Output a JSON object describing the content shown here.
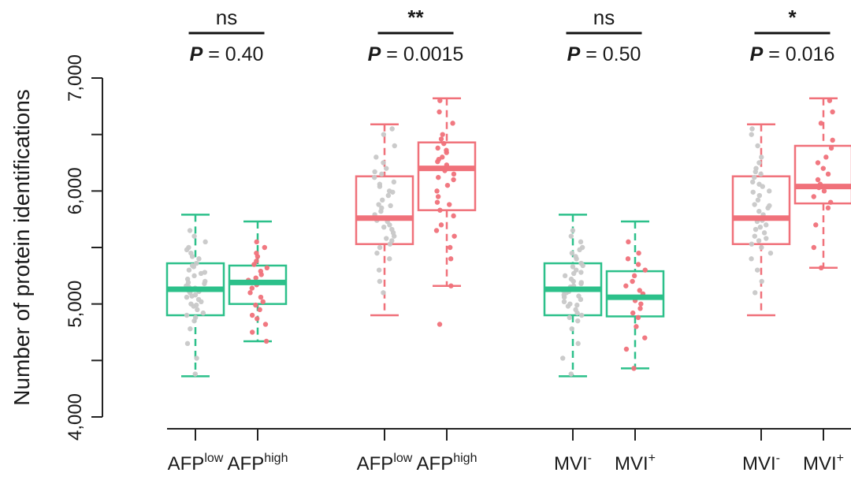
{
  "chart_data": {
    "type": "box",
    "ylabel": "Number of protein identifications",
    "ylim": [
      4000,
      7000
    ],
    "yticks": [
      {
        "value": 4000,
        "label": "4,000"
      },
      {
        "value": 4500,
        "label": ""
      },
      {
        "value": 5000,
        "label": "5,000"
      },
      {
        "value": 5500,
        "label": ""
      },
      {
        "value": 6000,
        "label": "6,000"
      },
      {
        "value": 6500,
        "label": ""
      },
      {
        "value": 7000,
        "label": "7,000"
      }
    ],
    "colors": {
      "green": "#2cc08a",
      "red": "#f0717a",
      "point_gray": "#c8c8c8"
    },
    "groups": [
      {
        "label_base": "AFP",
        "label_sup": "low",
        "color": "#2cc08a",
        "point_color": "#c8c8c8",
        "whisker_low": 4360,
        "q1": 4900,
        "median": 5130,
        "q3": 5360,
        "whisker_high": 5790,
        "points": [
          4380,
          4520,
          4650,
          4780,
          4850,
          4880,
          4900,
          4920,
          4950,
          4980,
          5000,
          5020,
          5040,
          5060,
          5080,
          5100,
          5110,
          5120,
          5130,
          5140,
          5150,
          5160,
          5180,
          5200,
          5220,
          5250,
          5280,
          5300,
          5330,
          5360,
          5400,
          5450,
          5500,
          5550,
          5600,
          5650,
          4990,
          5070,
          5190,
          5270,
          5340,
          5420,
          5480
        ]
      },
      {
        "label_base": "AFP",
        "label_sup": "high",
        "color": "#2cc08a",
        "point_color": "#f0717a",
        "whisker_low": 4670,
        "q1": 5000,
        "median": 5190,
        "q3": 5340,
        "whisker_high": 5730,
        "points": [
          4670,
          4750,
          4820,
          4870,
          4900,
          4950,
          4990,
          5020,
          5060,
          5100,
          5140,
          5170,
          5190,
          5210,
          5230,
          5260,
          5290,
          5320,
          5350,
          5380,
          5420,
          5450,
          5500,
          5550
        ]
      },
      {
        "label_base": "AFP",
        "label_sup": "low",
        "color": "#f0717a",
        "point_color": "#c8c8c8",
        "whisker_low": 4900,
        "q1": 5530,
        "median": 5760,
        "q3": 6130,
        "whisker_high": 6590,
        "points": [
          5100,
          5200,
          5300,
          5400,
          5450,
          5500,
          5530,
          5560,
          5600,
          5630,
          5660,
          5700,
          5730,
          5760,
          5790,
          5820,
          5850,
          5880,
          5920,
          5960,
          6000,
          6040,
          6080,
          6120,
          6150,
          6200,
          6250,
          6300,
          6400,
          6500,
          6550,
          5580,
          5680,
          5740,
          5870,
          5990,
          6060,
          6170
        ]
      },
      {
        "label_base": "AFP",
        "label_sup": "high",
        "color": "#f0717a",
        "point_color": "#f0717a",
        "whisker_low": 5160,
        "q1": 5830,
        "median": 6200,
        "q3": 6430,
        "whisker_high": 6820,
        "points": [
          4820,
          5160,
          5400,
          5500,
          5600,
          5700,
          5780,
          5830,
          5900,
          5950,
          6000,
          6050,
          6100,
          6150,
          6200,
          6230,
          6260,
          6300,
          6340,
          6380,
          6420,
          6460,
          6500,
          6600,
          6700,
          6800,
          5650,
          5880,
          6120,
          6180,
          6280,
          6360
        ]
      },
      {
        "label_base": "MVI",
        "label_sup": "-",
        "color": "#2cc08a",
        "point_color": "#c8c8c8",
        "whisker_low": 4360,
        "q1": 4900,
        "median": 5130,
        "q3": 5360,
        "whisker_high": 5790,
        "points": [
          4380,
          4520,
          4650,
          4780,
          4850,
          4880,
          4900,
          4920,
          4950,
          4980,
          5000,
          5020,
          5040,
          5060,
          5080,
          5100,
          5110,
          5120,
          5130,
          5140,
          5150,
          5160,
          5180,
          5200,
          5220,
          5250,
          5280,
          5300,
          5330,
          5360,
          5400,
          5450,
          5500,
          5550,
          5600,
          5650,
          4990,
          5070,
          5190,
          5270,
          5340,
          5420,
          5480
        ]
      },
      {
        "label_base": "MVI",
        "label_sup": "+",
        "color": "#2cc08a",
        "point_color": "#f0717a",
        "whisker_low": 4430,
        "q1": 4890,
        "median": 5060,
        "q3": 5290,
        "whisker_high": 5730,
        "points": [
          4430,
          4600,
          4700,
          4800,
          4880,
          4920,
          4960,
          5000,
          5030,
          5060,
          5090,
          5120,
          5160,
          5200,
          5250,
          5300,
          5350,
          5400,
          5450,
          5550
        ]
      },
      {
        "label_base": "MVI",
        "label_sup": "-",
        "color": "#f0717a",
        "point_color": "#c8c8c8",
        "whisker_low": 4900,
        "q1": 5530,
        "median": 5760,
        "q3": 6130,
        "whisker_high": 6590,
        "points": [
          5100,
          5200,
          5300,
          5400,
          5450,
          5500,
          5530,
          5560,
          5600,
          5630,
          5660,
          5700,
          5730,
          5760,
          5790,
          5820,
          5850,
          5880,
          5920,
          5960,
          6000,
          6040,
          6080,
          6120,
          6150,
          6200,
          6250,
          6300,
          6400,
          6500,
          6550,
          5580,
          5680,
          5740,
          5870,
          5990,
          6060,
          6170
        ]
      },
      {
        "label_base": "MVI",
        "label_sup": "+",
        "color": "#f0717a",
        "point_color": "#f0717a",
        "whisker_low": 5320,
        "q1": 5890,
        "median": 6040,
        "q3": 6400,
        "whisker_high": 6820,
        "points": [
          5320,
          5500,
          5700,
          5850,
          5900,
          5950,
          6000,
          6030,
          6060,
          6100,
          6150,
          6200,
          6250,
          6300,
          6380,
          6450,
          6600,
          6700,
          6800
        ]
      }
    ],
    "comparisons": [
      {
        "stars": "ns",
        "p_label": "P",
        "p_value": " = 0.40"
      },
      {
        "stars": "**",
        "p_label": "P",
        "p_value": " = 0.0015"
      },
      {
        "stars": "ns",
        "p_label": "P",
        "p_value": " = 0.50"
      },
      {
        "stars": "*",
        "p_label": "P",
        "p_value": " = 0.016"
      }
    ]
  }
}
